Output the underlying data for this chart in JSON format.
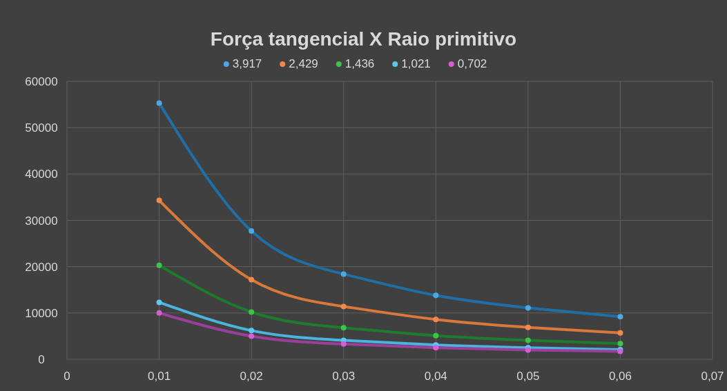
{
  "chart_data": {
    "type": "scatter",
    "title": "Força tangencial X Raio primitivo",
    "x": [
      0.01,
      0.02,
      0.03,
      0.04,
      0.05,
      0.06
    ],
    "xlim": [
      0,
      0.07
    ],
    "xticks": [
      {
        "value": 0,
        "label": "0"
      },
      {
        "value": 0.01,
        "label": "0,01"
      },
      {
        "value": 0.02,
        "label": "0,02"
      },
      {
        "value": 0.03,
        "label": "0,03"
      },
      {
        "value": 0.04,
        "label": "0,04"
      },
      {
        "value": 0.05,
        "label": "0,05"
      },
      {
        "value": 0.06,
        "label": "0,06"
      },
      {
        "value": 0.07,
        "label": "0,07"
      }
    ],
    "ylim": [
      0,
      60000
    ],
    "yticks": [
      0,
      10000,
      20000,
      30000,
      40000,
      50000,
      60000
    ],
    "grid": true,
    "legend": "top",
    "marker": "circle",
    "series": [
      {
        "type": "line",
        "marker": "none",
        "color": "#1f6ea6",
        "values": [
          55300,
          27700,
          18400,
          13800,
          11100,
          9200
        ]
      },
      {
        "type": "line",
        "marker": "none",
        "color": "#d9783a",
        "values": [
          34300,
          17200,
          11400,
          8600,
          6900,
          5700
        ]
      },
      {
        "type": "line",
        "marker": "none",
        "color": "#1e7a2c",
        "values": [
          20300,
          10200,
          6800,
          5100,
          4100,
          3400
        ]
      },
      {
        "type": "line",
        "marker": "none",
        "color": "#4ab3de",
        "values": [
          12300,
          6200,
          4100,
          3100,
          2500,
          2100
        ]
      },
      {
        "type": "line",
        "marker": "none",
        "color": "#9a3f9a",
        "values": [
          10000,
          5000,
          3300,
          2500,
          2000,
          1700
        ]
      },
      {
        "name": "3,917",
        "color": "#4ea8e0",
        "values": [
          55300,
          27700,
          18400,
          13800,
          11100,
          9200
        ]
      },
      {
        "name": "2,429",
        "color": "#f08a4b",
        "values": [
          34300,
          17200,
          11400,
          8600,
          6900,
          5700
        ]
      },
      {
        "name": "1,436",
        "color": "#3fc24a",
        "values": [
          20300,
          10200,
          6800,
          5100,
          4100,
          3400
        ]
      },
      {
        "name": "1,021",
        "color": "#5cc8f2",
        "values": [
          12300,
          6200,
          4100,
          3100,
          2500,
          2100
        ]
      },
      {
        "name": "0,702",
        "color": "#d45fd4",
        "values": [
          10000,
          5000,
          3300,
          2500,
          2000,
          1700
        ]
      }
    ]
  }
}
